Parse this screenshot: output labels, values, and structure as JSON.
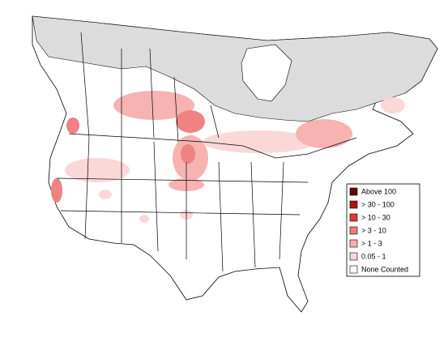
{
  "legend": {
    "items": [
      {
        "label": "Above 100",
        "color": "#5a0a0a"
      },
      {
        "label": "> 30 - 100",
        "color": "#b80f0f"
      },
      {
        "label": "> 10 - 30",
        "color": "#e83434"
      },
      {
        "label": "> 3 - 10",
        "color": "#f07c7c"
      },
      {
        "label": "> 1 - 3",
        "color": "#f7aeae"
      },
      {
        "label": "0.05 - 1",
        "color": "#fbd6d6"
      },
      {
        "label": "None Counted",
        "color": "#ffffff"
      }
    ]
  }
}
